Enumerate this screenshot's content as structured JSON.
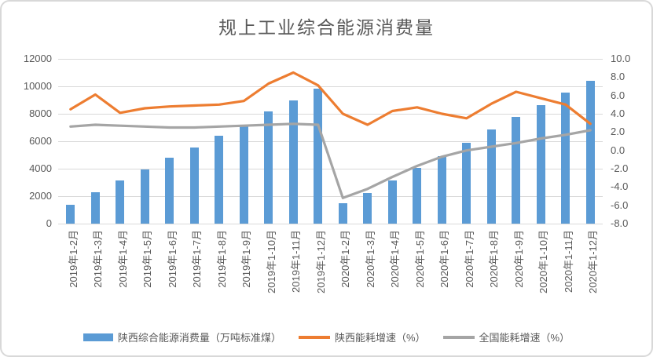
{
  "chart_data": {
    "type": "bar+line",
    "title": "规上工业综合能源消费量",
    "categories": [
      "2019年1-2月",
      "2019年1-3月",
      "2019年1-4月",
      "2019年1-5月",
      "2019年1-6月",
      "2019年1-7月",
      "2019年1-8月",
      "2019年1-9月",
      "2019年1-10月",
      "2019年1-11月",
      "2019年1-12月",
      "2020年1-2月",
      "2020年1-3月",
      "2020年1-4月",
      "2020年1-5月",
      "2020年1-6月",
      "2020年1-7月",
      "2020年1-8月",
      "2020年1-9月",
      "2020年1-10月",
      "2020年1-11月",
      "2020年1-12月"
    ],
    "series": [
      {
        "name": "陕西综合能源消费量（万吨标准煤）",
        "type": "bar",
        "axis": "left",
        "color": "#5B9BD5",
        "values": [
          1400,
          2270,
          3130,
          3940,
          4780,
          5540,
          6400,
          7090,
          8170,
          9000,
          9850,
          1500,
          2210,
          3130,
          4080,
          4930,
          5890,
          6840,
          7750,
          8650,
          9540,
          10420
        ]
      },
      {
        "name": "陕西能耗增速（%）",
        "type": "line",
        "axis": "right",
        "color": "#ED7D31",
        "values": [
          4.5,
          6.1,
          4.1,
          4.6,
          4.8,
          4.9,
          5.0,
          5.4,
          7.3,
          8.5,
          7.1,
          4.0,
          2.8,
          4.3,
          4.7,
          4.0,
          3.5,
          5.1,
          6.4,
          5.7,
          5.0,
          2.9
        ]
      },
      {
        "name": "全国能耗增速（%）",
        "type": "line",
        "axis": "right",
        "color": "#A5A5A5",
        "values": [
          2.6,
          2.8,
          2.7,
          2.6,
          2.5,
          2.5,
          2.6,
          2.7,
          2.8,
          2.9,
          2.8,
          -5.2,
          -4.2,
          -2.9,
          -1.7,
          -0.7,
          0.0,
          0.4,
          0.8,
          1.3,
          1.7,
          2.2
        ]
      }
    ],
    "left_axis": {
      "min": 0,
      "max": 12000,
      "tick_step": 2000,
      "ticks": [
        "12000",
        "10000",
        "8000",
        "6000",
        "4000",
        "2000",
        "0"
      ]
    },
    "right_axis": {
      "min": -8,
      "max": 10,
      "tick_step": 2.0,
      "ticks": [
        "10.0",
        "8.0",
        "6.0",
        "4.0",
        "2.0",
        "0.0",
        "-2.0",
        "-4.0",
        "-6.0",
        "-8.0"
      ]
    },
    "grid": true,
    "legend_position": "bottom",
    "gridline_color": "#d9d9d9",
    "label_color": "#595959"
  }
}
